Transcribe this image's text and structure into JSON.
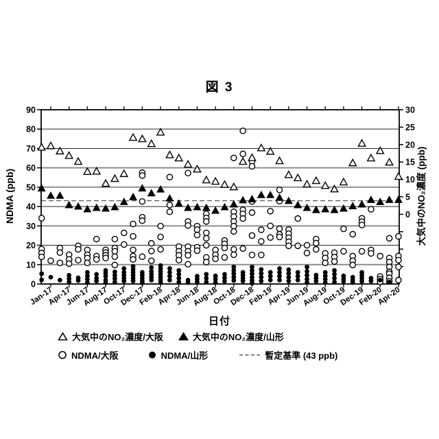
{
  "title": "図 3",
  "axes": {
    "left": {
      "title": "NDMA (ppb)",
      "range": [
        0,
        90
      ],
      "tick_labels": [
        "0",
        "10",
        "20",
        "30",
        "40",
        "50",
        "60",
        "70",
        "80",
        "90"
      ]
    },
    "right": {
      "title": "大気中のNO₂濃度 (ppb)",
      "range_labeled": [
        0,
        30
      ],
      "range_full": [
        -20,
        30
      ],
      "tick_labels": [
        "0",
        "5",
        "10",
        "15",
        "20",
        "25",
        "30"
      ]
    },
    "x": {
      "title": "日付",
      "tick_labels": [
        "Jan-17",
        "Apr-17",
        "Jun-17",
        "Aug-17",
        "Oct-17",
        "Dec-17",
        "Feb-18",
        "Apr-18",
        "Jun-18",
        "Aug-18",
        "Oct-18",
        "Dec-18",
        "Feb-19",
        "Apr-19",
        "Jun-19",
        "Aug-19",
        "Oct-19",
        "Dec-19",
        "Feb-20",
        "Apr-20"
      ]
    }
  },
  "legend": {
    "items": [
      {
        "label": "大気中のNO₂濃度/大阪",
        "marker": "open-triangle"
      },
      {
        "label": "大気中のNO₂濃度/山形",
        "marker": "filled-triangle"
      },
      {
        "label": "NDMA/大阪",
        "marker": "open-circle"
      },
      {
        "label": "NDMA/山形",
        "marker": "filled-circle"
      },
      {
        "label": "暫定基準 (43 ppb)",
        "marker": "dashed-line"
      }
    ]
  },
  "colors": {
    "ink": "#000000",
    "grid_gray": "#8c8c8c",
    "grid_dark": "#262626",
    "dash": "#555555",
    "bg": "#ffffff"
  },
  "chart_data": {
    "type": "scatter",
    "title": "図 3",
    "xlabel": "日付",
    "ylabel_left": "NDMA (ppb)",
    "ylabel_right": "大気中のNO₂濃度 (ppb)",
    "left_ylim": [
      0,
      90
    ],
    "right_ylim": [
      -20,
      30
    ],
    "grid_values_left_gray": [
      10,
      30,
      60,
      80
    ],
    "grid_values_left_dark": [
      20,
      40,
      50,
      70
    ],
    "threshold": {
      "label": "暫定基準 (43 ppb)",
      "value_left_axis_ppb": 43
    },
    "months": [
      "Jan-17",
      "Feb-17",
      "Mar-17",
      "Apr-17",
      "May-17",
      "Jun-17",
      "Jul-17",
      "Aug-17",
      "Sep-17",
      "Oct-17",
      "Nov-17",
      "Dec-17",
      "Jan-18",
      "Feb-18",
      "Mar-18",
      "Apr-18",
      "May-18",
      "Jun-18",
      "Jul-18",
      "Aug-18",
      "Sep-18",
      "Oct-18",
      "Nov-18",
      "Dec-18",
      "Jan-19",
      "Feb-19",
      "Mar-19",
      "Apr-19",
      "May-19",
      "Jun-19",
      "Jul-19",
      "Aug-19",
      "Sep-19",
      "Oct-19",
      "Nov-19",
      "Dec-19",
      "Jan-20",
      "Feb-20",
      "Mar-20",
      "Apr-20"
    ],
    "series": [
      {
        "name": "大気中のNO₂濃度/大阪",
        "marker": "open-triangle",
        "axis": "right",
        "unit": "ppb",
        "values": [
          19.3,
          19.7,
          18.2,
          16.9,
          15.2,
          12.3,
          12.4,
          8.9,
          10.3,
          11.7,
          22.1,
          21.7,
          20.3,
          23.6,
          17.1,
          16.2,
          14.4,
          13.0,
          9.9,
          9.5,
          8.6,
          7.9,
          15.2,
          16.3,
          19.1,
          18.1,
          15.4,
          11.4,
          10.5,
          8.7,
          9.7,
          8.3,
          7.3,
          9.3,
          14.8,
          20.4,
          16.2,
          18.3,
          15.0,
          10.9
        ]
      },
      {
        "name": "大気中のNO₂濃度/山形",
        "marker": "filled-triangle",
        "axis": "right",
        "unit": "ppb",
        "values": [
          7.5,
          5.4,
          5.4,
          2.7,
          2.3,
          1.5,
          1.9,
          1.7,
          2.1,
          3.6,
          5.0,
          7.5,
          6.1,
          7.2,
          4.6,
          3.1,
          1.9,
          2.1,
          1.9,
          1.1,
          2.1,
          2.9,
          4.1,
          4.4,
          5.6,
          5.6,
          4.8,
          3.9,
          2.7,
          1.9,
          1.3,
          1.5,
          1.3,
          1.7,
          2.4,
          2.9,
          4.2,
          3.6,
          4.2,
          4.2
        ]
      },
      {
        "name": "NDMA/大阪",
        "marker": "open-circle",
        "axis": "left",
        "unit": "ppb",
        "values": [
          [
            34,
            18,
            16,
            14
          ],
          [
            12
          ],
          [
            18.6,
            16.2,
            10.9
          ],
          [
            15.1,
            12.7,
            10.5
          ],
          [
            19.7,
            17.9,
            12.3
          ],
          [
            17.6,
            15.1,
            13.4,
            10.9
          ],
          [
            23.2,
            14.4,
            12.7
          ],
          [
            17.6,
            16.2,
            14.8,
            13.4
          ],
          [
            23.2,
            18.6,
            16.9,
            14.1,
            9.8
          ],
          [
            26.4,
            20.4
          ],
          [
            31,
            24.6,
            17.6,
            14.4,
            12.7
          ],
          [
            57.5,
            56,
            42.6,
            34.5,
            32.7,
            14.1
          ],
          [
            21,
            17,
            12
          ],
          [
            29.9,
            24.3,
            17.9
          ],
          [
            55.2,
            40.8,
            37.3
          ],
          [
            19.3,
            16.9,
            14.8,
            12.3
          ],
          [
            57.3,
            32.3,
            30.2,
            19.3,
            16.9,
            14.8,
            10.2
          ],
          [
            29.9,
            28.1,
            25.3,
            19,
            17.2
          ],
          [
            36.2,
            34.1,
            32.3,
            26.4,
            23.6,
            20,
            13.7,
            11.3
          ],
          [
            17.6,
            15.1,
            13
          ],
          [
            22.5,
            20.7,
            18.6,
            13.7
          ],
          [
            65.1,
            37.3,
            34.8,
            32.3,
            29.9,
            27.1,
            17.9,
            15.1
          ],
          [
            79.1,
            67.2,
            38.3,
            36.2,
            33.8,
            18.3
          ],
          [
            63.3,
            60.8,
            42.6,
            36.9,
            25,
            15
          ],
          [
            28,
            22,
            15
          ],
          [
            37.6,
            30,
            24
          ],
          [
            48.6,
            42.8,
            28.5,
            25.7,
            24.3
          ],
          [
            28.1,
            26,
            23.9,
            21.8,
            19.7
          ],
          [
            33.8,
            19.7
          ],
          [
            20,
            16
          ],
          [
            23.2,
            21.1,
            17.9
          ],
          [
            15.8,
            13.4,
            10.9
          ],
          [
            16.2,
            13.9,
            11.6
          ],
          [
            28.5,
            16.9
          ],
          [
            25.7,
            14.4,
            12,
            9.8
          ],
          [
            33.9,
            32.2,
            30.5,
            16.9
          ],
          [
            38.6,
            17.6,
            15.8
          ],
          [
            14.4,
            3.9,
            2.5,
            1.1
          ],
          [
            23.6,
            13.4,
            11.3,
            8.8,
            6.3,
            5.3,
            3.2,
            1.4
          ],
          [
            24.6,
            14.4,
            12.3,
            8.8,
            2
          ]
        ]
      },
      {
        "name": "NDMA/山形",
        "marker": "filled-circle",
        "axis": "left",
        "unit": "ppb",
        "values": [
          [
            5.3,
            2.1
          ],
          [
            3.5
          ],
          [
            2
          ],
          [
            4.5,
            2.8,
            1.1
          ],
          [
            3.2,
            1.8
          ],
          [
            6,
            4.2,
            2.5,
            0.7
          ],
          [
            5,
            3,
            1.5
          ],
          [
            7,
            5.5,
            4,
            2,
            0.7
          ],
          [
            6.3,
            4.5,
            2.8,
            1
          ],
          [
            8,
            6,
            4.5,
            3,
            1.5
          ],
          [
            9.1,
            7.5,
            6,
            4.5,
            3,
            1.5
          ],
          [
            6,
            4.5,
            3,
            1.5,
            0.5
          ],
          [
            8.5,
            6.5,
            5,
            3.5,
            2
          ],
          [
            9.5,
            8,
            6.5,
            5,
            3.5,
            2,
            0.7
          ],
          [
            8,
            6,
            4,
            2
          ],
          [
            7,
            5,
            3,
            1
          ],
          [
            2,
            0.7
          ],
          [
            4,
            2.5,
            1
          ],
          [
            5,
            3,
            1
          ],
          [
            4.2,
            2.5,
            0.7
          ],
          [
            5,
            3.2,
            1.4
          ],
          [
            8.8,
            7,
            5.3,
            3.5,
            1.8
          ],
          [
            6,
            4.5,
            3,
            1.5
          ],
          [
            8.8,
            7,
            5.3,
            3.5,
            1.8,
            0.4
          ],
          [
            7.5,
            5.5,
            3.5,
            1.5
          ],
          [
            6,
            4,
            2
          ],
          [
            8,
            6,
            4,
            2
          ],
          [
            7.4,
            5.5,
            3.5,
            1.5
          ],
          [
            6,
            4,
            2
          ],
          [
            8.8,
            6.5,
            4.5,
            2.5,
            0.7
          ],
          [
            4.6,
            3,
            1.4
          ],
          [
            6,
            4.2,
            2.5,
            0.7
          ],
          [
            7,
            5,
            3,
            1
          ],
          [
            4.2,
            2.8,
            1.4
          ],
          [
            3.5,
            2,
            0.7
          ],
          [
            6,
            4.5,
            3,
            1.4
          ],
          [
            3,
            1.5
          ],
          [
            2
          ],
          [
            1
          ],
          []
        ]
      }
    ]
  }
}
